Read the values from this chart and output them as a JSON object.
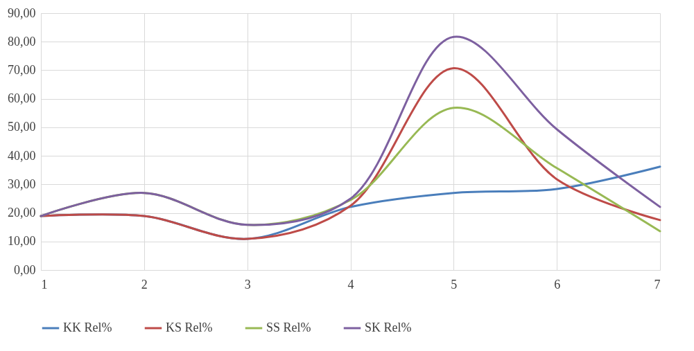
{
  "chart_data": {
    "type": "line",
    "x": [
      1,
      2,
      3,
      4,
      5,
      6,
      7
    ],
    "series": [
      {
        "name": "KK Rel%",
        "color": "#4a7ebb",
        "values": [
          18.9,
          18.9,
          10.9,
          22.1,
          27.0,
          28.4,
          36.2
        ]
      },
      {
        "name": "KS Rel%",
        "color": "#be4b48",
        "values": [
          18.9,
          18.9,
          10.9,
          22.5,
          70.7,
          31.8,
          17.5
        ]
      },
      {
        "name": "SS Rel%",
        "color": "#98b954",
        "values": [
          18.9,
          27.0,
          15.8,
          24.5,
          56.8,
          35.7,
          13.6
        ]
      },
      {
        "name": "SK Rel%",
        "color": "#7d60a0",
        "values": [
          18.9,
          27.0,
          15.8,
          25.0,
          81.7,
          49.3,
          22.1
        ]
      }
    ],
    "xlim": [
      1,
      7
    ],
    "xticks": [
      1,
      2,
      3,
      4,
      5,
      6,
      7
    ],
    "ylim": [
      0,
      90
    ],
    "yticks": [
      {
        "value": 0,
        "label": "0,00"
      },
      {
        "value": 10,
        "label": "10,00"
      },
      {
        "value": 20,
        "label": "20,00"
      },
      {
        "value": 30,
        "label": "30,00"
      },
      {
        "value": 40,
        "label": "40,00"
      },
      {
        "value": 50,
        "label": "50,00"
      },
      {
        "value": 60,
        "label": "60,00"
      },
      {
        "value": 70,
        "label": "70,00"
      },
      {
        "value": 80,
        "label": "80,00"
      },
      {
        "value": 90,
        "label": "90,00"
      }
    ],
    "grid": true,
    "legend": "bottom",
    "marker": "none",
    "line_style": "solid"
  }
}
